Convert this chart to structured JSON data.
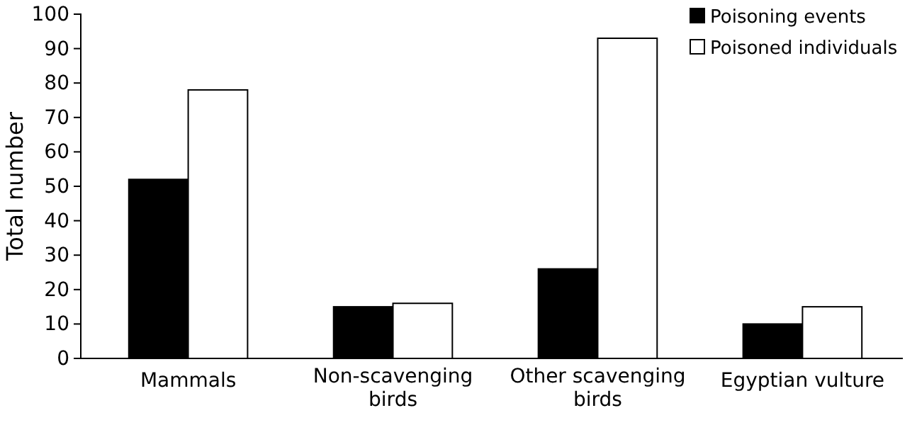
{
  "chart_data": {
    "type": "bar",
    "ylabel": "Total number",
    "categories": [
      "Mammals",
      "Non-scavenging birds",
      "Other scavenging birds",
      "Egyptian vulture"
    ],
    "series": [
      {
        "name": "Poisoning events",
        "color": "#000000",
        "values": [
          52,
          15,
          26,
          10
        ]
      },
      {
        "name": "Poisoned individuals",
        "color": "#ffffff",
        "values": [
          78,
          16,
          93,
          15
        ]
      }
    ],
    "ylim": [
      0,
      100
    ],
    "yticks": [
      0,
      10,
      20,
      30,
      40,
      50,
      60,
      70,
      80,
      90,
      100
    ],
    "grid": false,
    "legend": "top right"
  }
}
